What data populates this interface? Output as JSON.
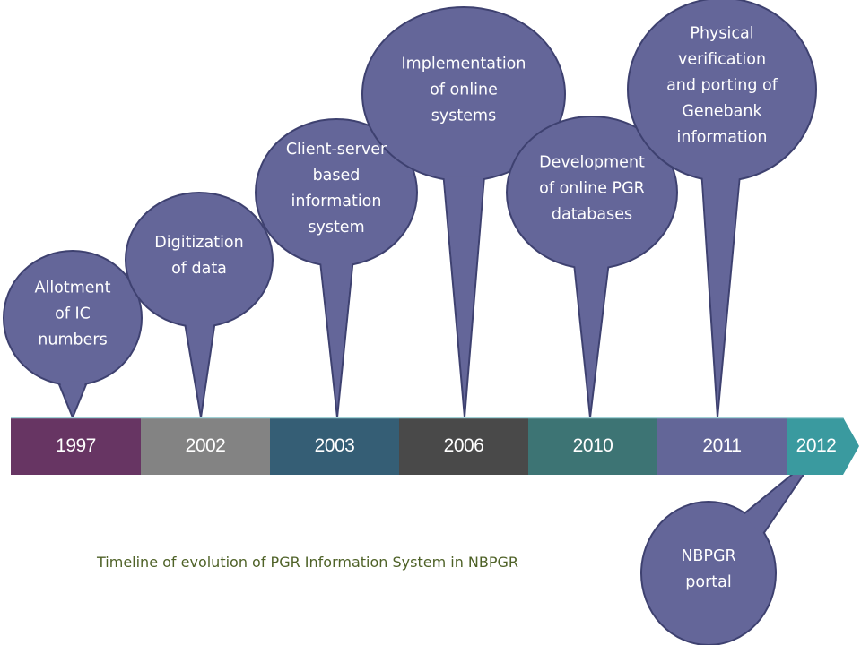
{
  "caption": "Timeline of evolution of PGR Information System in NBPGR",
  "colors": {
    "bubble_fill": "#646699",
    "bubble_stroke": "#3e4170",
    "caption": "#4f6228"
  },
  "timeline": [
    {
      "year": "1997",
      "color": "#673563"
    },
    {
      "year": "2002",
      "color": "#838383"
    },
    {
      "year": "2003",
      "color": "#355e75"
    },
    {
      "year": "2006",
      "color": "#494949"
    },
    {
      "year": "2010",
      "color": "#3d7474"
    },
    {
      "year": "2011",
      "color": "#636698"
    },
    {
      "year": "2012",
      "color": "#3a9a9f"
    }
  ],
  "events": [
    {
      "year": "1997",
      "lines": [
        "Allotment",
        "of IC",
        "numbers"
      ]
    },
    {
      "year": "2002",
      "lines": [
        "Digitization",
        "of data"
      ]
    },
    {
      "year": "2003",
      "lines": [
        "Client-server",
        "based",
        "information",
        "system"
      ]
    },
    {
      "year": "2006",
      "lines": [
        "Implementation",
        "of online",
        "systems"
      ]
    },
    {
      "year": "2010",
      "lines": [
        "Development",
        "of online PGR",
        "databases"
      ]
    },
    {
      "year": "2011",
      "lines": [
        "Physical",
        "verification",
        "and porting of",
        "Genebank",
        "information"
      ]
    },
    {
      "year": "2012",
      "lines": [
        "NBPGR",
        "portal"
      ]
    }
  ]
}
